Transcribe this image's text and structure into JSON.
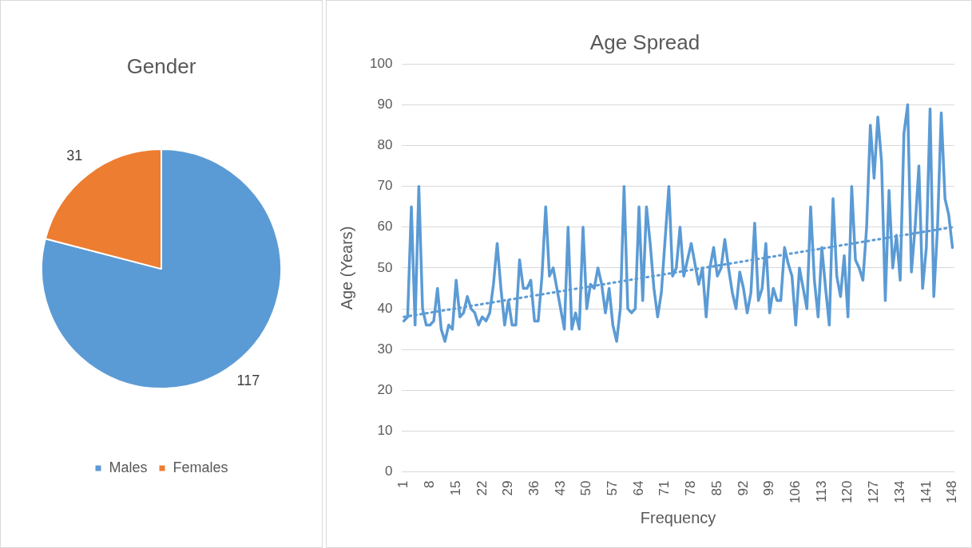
{
  "chart_data": [
    {
      "type": "pie",
      "title": "Gender",
      "categories": [
        "Males",
        "Females"
      ],
      "values": [
        117,
        31
      ],
      "colors": [
        "#5b9bd5",
        "#ed7d31"
      ],
      "data_labels": true,
      "legend": "bottom"
    },
    {
      "type": "line",
      "title": "Age Spread",
      "xlabel": "Frequency",
      "ylabel": "Age (Years)",
      "x": [
        1,
        2,
        3,
        4,
        5,
        6,
        7,
        8,
        9,
        10,
        11,
        12,
        13,
        14,
        15,
        16,
        17,
        18,
        19,
        20,
        21,
        22,
        23,
        24,
        25,
        26,
        27,
        28,
        29,
        30,
        31,
        32,
        33,
        34,
        35,
        36,
        37,
        38,
        39,
        40,
        41,
        42,
        43,
        44,
        45,
        46,
        47,
        48,
        49,
        50,
        51,
        52,
        53,
        54,
        55,
        56,
        57,
        58,
        59,
        60,
        61,
        62,
        63,
        64,
        65,
        66,
        67,
        68,
        69,
        70,
        71,
        72,
        73,
        74,
        75,
        76,
        77,
        78,
        79,
        80,
        81,
        82,
        83,
        84,
        85,
        86,
        87,
        88,
        89,
        90,
        91,
        92,
        93,
        94,
        95,
        96,
        97,
        98,
        99,
        100,
        101,
        102,
        103,
        104,
        105,
        106,
        107,
        108,
        109,
        110,
        111,
        112,
        113,
        114,
        115,
        116,
        117,
        118,
        119,
        120,
        121,
        122,
        123,
        124,
        125,
        126,
        127,
        128,
        129,
        130,
        131,
        132,
        133,
        134,
        135,
        136,
        137,
        138,
        139,
        140,
        141,
        142,
        143,
        144,
        145,
        146,
        147,
        148
      ],
      "xlim": [
        0.5,
        148.5
      ],
      "xticks": [
        1,
        8,
        15,
        22,
        29,
        36,
        43,
        50,
        57,
        64,
        71,
        78,
        85,
        92,
        99,
        106,
        113,
        120,
        127,
        134,
        141,
        148
      ],
      "ylim": [
        0,
        100
      ],
      "yticks": [
        0,
        10,
        20,
        30,
        40,
        50,
        60,
        70,
        80,
        90,
        100
      ],
      "grid": "y",
      "legend": false,
      "marker": "none",
      "series": [
        {
          "color": "#5b9bd5",
          "values": [
            37,
            38,
            65,
            36,
            70,
            40,
            36,
            36,
            37,
            45,
            35,
            32,
            36,
            35,
            47,
            38,
            39,
            43,
            40,
            39,
            36,
            38,
            37,
            39,
            46,
            56,
            45,
            36,
            42,
            36,
            36,
            52,
            45,
            45,
            47,
            37,
            37,
            48,
            65,
            48,
            50,
            45,
            40,
            35,
            60,
            35,
            39,
            35,
            60,
            40,
            46,
            45,
            50,
            46,
            39,
            45,
            36,
            32,
            40,
            70,
            40,
            39,
            40,
            65,
            42,
            65,
            56,
            45,
            38,
            44,
            57,
            70,
            48,
            50,
            60,
            48,
            52,
            56,
            51,
            46,
            50,
            38,
            50,
            55,
            48,
            50,
            57,
            50,
            44,
            40,
            49,
            45,
            39,
            44,
            61,
            42,
            45,
            56,
            39,
            45,
            42,
            42,
            55,
            51,
            48,
            36,
            50,
            45,
            40,
            65,
            47,
            38,
            55,
            45,
            36,
            67,
            48,
            43,
            53,
            38,
            70,
            52,
            50,
            47,
            60,
            85,
            72,
            87,
            76,
            42,
            69,
            50,
            58,
            47,
            83,
            90,
            49,
            60,
            75,
            45,
            55,
            89,
            43,
            60,
            88,
            67,
            63,
            55
          ]
        },
        {
          "type": "line",
          "x": [
            1,
            148
          ],
          "values": [
            38,
            60
          ],
          "color": "#5b9bd5",
          "line_style": "dotted"
        }
      ]
    }
  ]
}
